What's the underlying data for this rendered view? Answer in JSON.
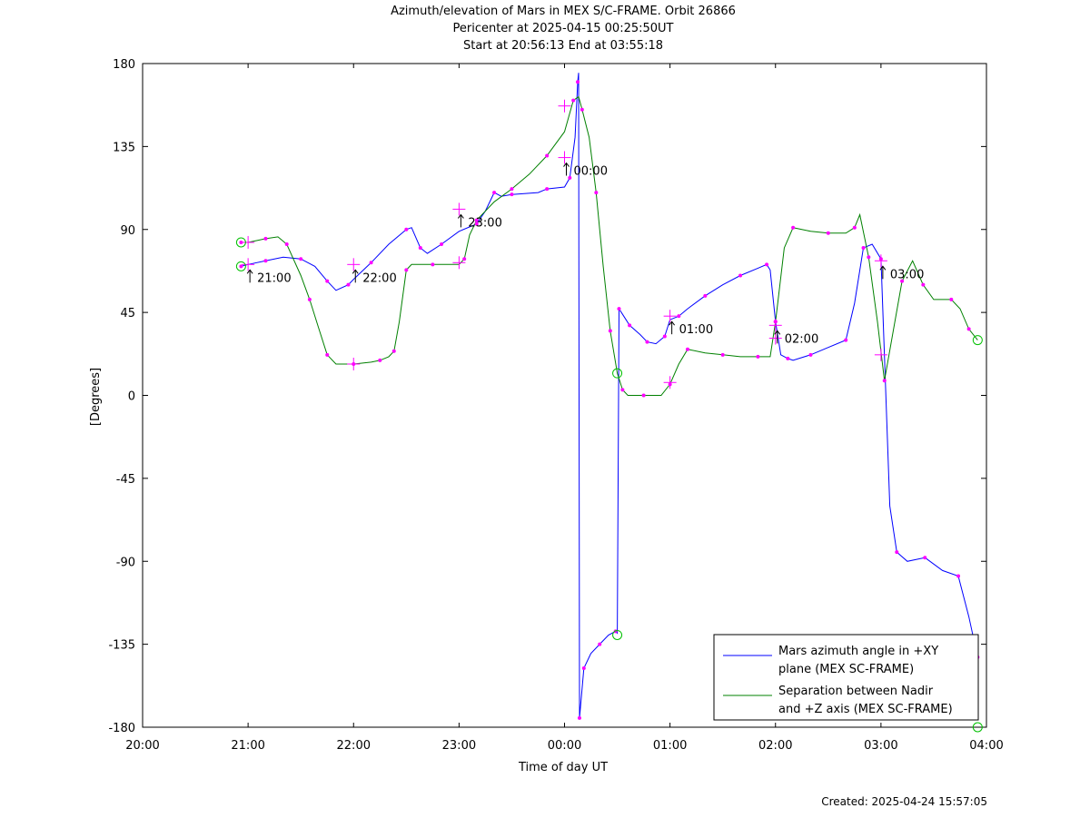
{
  "chart_data": {
    "type": "line",
    "title": "Azimuth/elevation of Mars in MEX S/C-FRAME.  Orbit 26866",
    "subtitle1": "Pericenter at 2025-04-15 00:25:50UT",
    "subtitle2": "Start at 20:56:13 End at 03:55:18",
    "xlabel": "Time of day UT",
    "ylabel": "[Degrees]",
    "footer": "Created: 2025-04-24 15:57:05",
    "xlim": [
      "20:00",
      "04:00"
    ],
    "ylim": [
      -180,
      180
    ],
    "x_ticks": [
      "20:00",
      "21:00",
      "22:00",
      "23:00",
      "00:00",
      "01:00",
      "02:00",
      "03:00",
      "04:00"
    ],
    "y_ticks": [
      "-180",
      "-135",
      "-90",
      "-45",
      "0",
      "45",
      "90",
      "135",
      "180"
    ],
    "grid": false,
    "legend_position": "bottom-right",
    "series": [
      {
        "name": "Mars azimuth angle in +XY plane (MEX SC-FRAME)",
        "legend_lines": [
          "Mars azimuth angle in +XY",
          "plane (MEX SC-FRAME)"
        ],
        "color": "#0000ff",
        "points": [
          [
            "20:56",
            70
          ],
          [
            "21:00",
            71
          ],
          [
            "21:10",
            73
          ],
          [
            "21:20",
            75
          ],
          [
            "21:30",
            74
          ],
          [
            "21:38",
            70
          ],
          [
            "21:45",
            62
          ],
          [
            "21:50",
            57
          ],
          [
            "21:57",
            60
          ],
          [
            "22:00",
            63
          ],
          [
            "22:10",
            72
          ],
          [
            "22:20",
            82
          ],
          [
            "22:30",
            90
          ],
          [
            "22:33",
            91
          ],
          [
            "22:38",
            80
          ],
          [
            "22:42",
            77
          ],
          [
            "22:50",
            82
          ],
          [
            "23:00",
            89
          ],
          [
            "23:10",
            93
          ],
          [
            "23:15",
            100
          ],
          [
            "23:20",
            110
          ],
          [
            "23:24",
            108
          ],
          [
            "23:30",
            109
          ],
          [
            "23:45",
            110
          ],
          [
            "23:50",
            112
          ],
          [
            "00:00",
            113
          ],
          [
            "00:03",
            118
          ],
          [
            "00:06",
            140
          ],
          [
            "00:07.5",
            170
          ],
          [
            "00:08",
            175
          ],
          [
            "00:08.5",
            -175
          ],
          [
            "00:09",
            -170
          ],
          [
            "00:11",
            -148
          ],
          [
            "00:15",
            -140
          ],
          [
            "00:20",
            -135
          ],
          [
            "00:25",
            -130
          ],
          [
            "00:29",
            -128
          ],
          [
            "00:30",
            -129
          ],
          [
            "00:31",
            47
          ],
          [
            "00:33",
            44
          ],
          [
            "00:37",
            38
          ],
          [
            "00:43",
            33
          ],
          [
            "00:47",
            29
          ],
          [
            "00:52",
            28
          ],
          [
            "00:57",
            32
          ],
          [
            "01:00",
            41
          ],
          [
            "01:05",
            43
          ],
          [
            "01:10",
            47
          ],
          [
            "01:20",
            54
          ],
          [
            "01:30",
            60
          ],
          [
            "01:40",
            65
          ],
          [
            "01:50",
            69
          ],
          [
            "01:55",
            71
          ],
          [
            "01:57",
            68
          ],
          [
            "02:00",
            40
          ],
          [
            "02:03",
            22
          ],
          [
            "02:07",
            20
          ],
          [
            "02:10",
            19
          ],
          [
            "02:20",
            22
          ],
          [
            "02:30",
            26
          ],
          [
            "02:40",
            30
          ],
          [
            "02:45",
            50
          ],
          [
            "02:50",
            80
          ],
          [
            "02:55",
            82
          ],
          [
            "03:00",
            74
          ],
          [
            "03:05",
            -60
          ],
          [
            "03:09",
            -85
          ],
          [
            "03:15",
            -90
          ],
          [
            "03:25",
            -88
          ],
          [
            "03:35",
            -95
          ],
          [
            "03:44",
            -98
          ],
          [
            "03:50",
            -120
          ],
          [
            "03:55",
            -142
          ]
        ]
      },
      {
        "name": "Separation between Nadir and +Z axis (MEX SC-FRAME)",
        "legend_lines": [
          "Separation between Nadir",
          "and +Z axis (MEX SC-FRAME)"
        ],
        "color": "#008000",
        "points": [
          [
            "20:56",
            83
          ],
          [
            "21:00",
            83
          ],
          [
            "21:10",
            85
          ],
          [
            "21:17",
            86
          ],
          [
            "21:22",
            82
          ],
          [
            "21:30",
            65
          ],
          [
            "21:35",
            52
          ],
          [
            "21:40",
            37
          ],
          [
            "21:45",
            22
          ],
          [
            "21:50",
            17
          ],
          [
            "22:00",
            17
          ],
          [
            "22:10",
            18
          ],
          [
            "22:15",
            19
          ],
          [
            "22:20",
            21
          ],
          [
            "22:23",
            24
          ],
          [
            "22:26",
            40
          ],
          [
            "22:30",
            68
          ],
          [
            "22:33",
            71
          ],
          [
            "22:45",
            71
          ],
          [
            "23:00",
            71
          ],
          [
            "23:03",
            74
          ],
          [
            "23:06",
            87
          ],
          [
            "23:10",
            95
          ],
          [
            "23:20",
            105
          ],
          [
            "23:30",
            112
          ],
          [
            "23:40",
            120
          ],
          [
            "23:50",
            130
          ],
          [
            "00:00",
            143
          ],
          [
            "00:05",
            160
          ],
          [
            "00:08",
            162
          ],
          [
            "00:10",
            155
          ],
          [
            "00:14",
            140
          ],
          [
            "00:18",
            110
          ],
          [
            "00:22",
            70
          ],
          [
            "00:26",
            35
          ],
          [
            "00:30",
            12
          ],
          [
            "00:33",
            3
          ],
          [
            "00:36",
            0
          ],
          [
            "00:45",
            0
          ],
          [
            "00:55",
            0
          ],
          [
            "01:00",
            6
          ],
          [
            "01:05",
            17
          ],
          [
            "01:10",
            25
          ],
          [
            "01:20",
            23
          ],
          [
            "01:30",
            22
          ],
          [
            "01:40",
            21
          ],
          [
            "01:50",
            21
          ],
          [
            "01:57",
            21
          ],
          [
            "02:00",
            40
          ],
          [
            "02:05",
            80
          ],
          [
            "02:10",
            91
          ],
          [
            "02:20",
            89
          ],
          [
            "02:30",
            88
          ],
          [
            "02:40",
            88
          ],
          [
            "02:45",
            91
          ],
          [
            "02:48",
            98
          ],
          [
            "02:53",
            75
          ],
          [
            "02:58",
            40
          ],
          [
            "03:02",
            8
          ],
          [
            "03:07",
            35
          ],
          [
            "03:12",
            62
          ],
          [
            "03:18",
            73
          ],
          [
            "03:24",
            60
          ],
          [
            "03:30",
            52
          ],
          [
            "03:40",
            52
          ],
          [
            "03:45",
            47
          ],
          [
            "03:50",
            36
          ],
          [
            "03:55",
            30
          ]
        ]
      }
    ],
    "time_annotations": [
      "21:00",
      "22:00",
      "23:00",
      "00:00",
      "01:00",
      "02:00",
      "03:00"
    ],
    "annotation_label_anchors": {
      "21:00": 71,
      "22:00": 71,
      "23:00": 101,
      "00:00": 129,
      "01:00": 43,
      "02:00": 38,
      "03:00": 73
    },
    "hour_markers": [
      [
        "21:00",
        71
      ],
      [
        "21:00",
        83
      ],
      [
        "22:00",
        71
      ],
      [
        "22:00",
        17
      ],
      [
        "23:00",
        101
      ],
      [
        "23:00",
        72
      ],
      [
        "00:00",
        129
      ],
      [
        "00:00",
        157
      ],
      [
        "01:00",
        43
      ],
      [
        "01:00",
        7
      ],
      [
        "02:00",
        38
      ],
      [
        "02:00",
        31
      ],
      [
        "03:00",
        73
      ],
      [
        "03:00",
        22
      ]
    ],
    "start_end_markers": [
      [
        "20:56",
        83
      ],
      [
        "20:56",
        70
      ],
      [
        "00:30",
        12
      ],
      [
        "00:30",
        -130
      ],
      [
        "03:55",
        30
      ],
      [
        "03:55",
        -180
      ]
    ],
    "color_markers": "#ff00ff",
    "color_start_end": "#00c000"
  }
}
